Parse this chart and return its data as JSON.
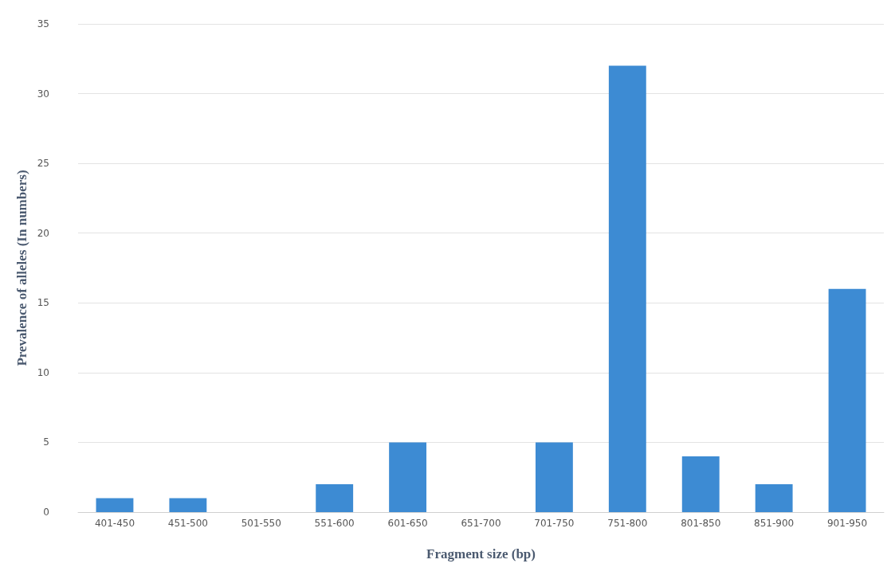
{
  "chart_data": {
    "type": "bar",
    "xlabel": "Fragment size (bp)",
    "ylabel": "Prevalence of alleles (In numbers)",
    "categories": [
      "401-450",
      "451-500",
      "501-550",
      "551-600",
      "601-650",
      "651-700",
      "701-750",
      "751-800",
      "801-850",
      "851-900",
      "901-950"
    ],
    "values": [
      1,
      1,
      0,
      2,
      5,
      0,
      5,
      32,
      4,
      2,
      16
    ],
    "color": "#3d8bd3",
    "ylim": [
      0,
      35
    ],
    "yticks": [
      0,
      5,
      10,
      15,
      20,
      25,
      30,
      35
    ],
    "grid": "y"
  }
}
